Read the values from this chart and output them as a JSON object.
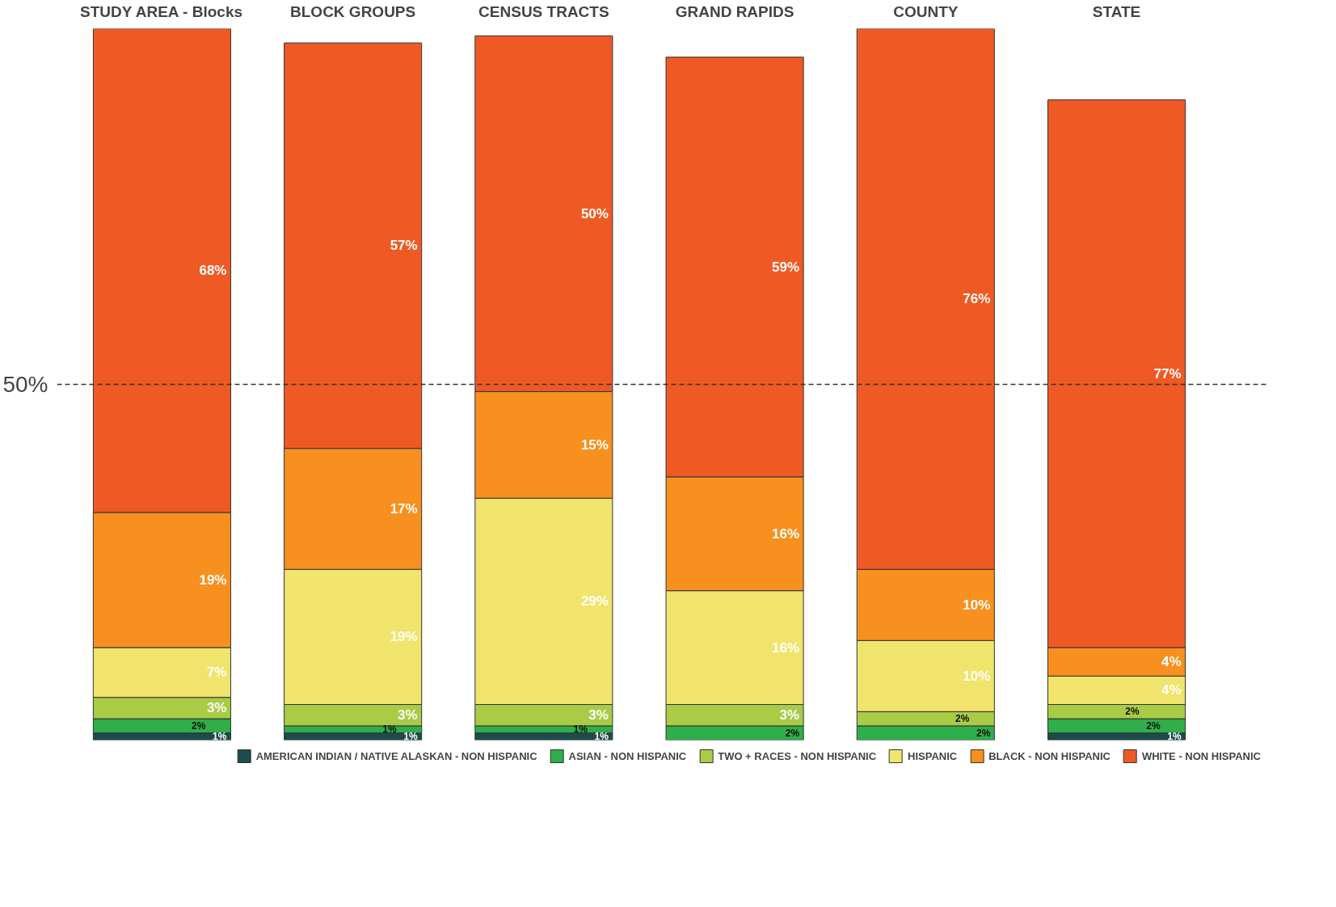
{
  "chart_data": {
    "type": "bar",
    "stacked": true,
    "categories": [
      "STUDY AREA - Blocks",
      "BLOCK GROUPS",
      "CENSUS TRACTS",
      "GRAND RAPIDS",
      "COUNTY",
      "STATE"
    ],
    "series": [
      {
        "name": "AMERICAN INDIAN / NATIVE ALASKAN - NON HISPANIC",
        "color": "#1d4a4a",
        "values": [
          1,
          1,
          1,
          null,
          null,
          1
        ],
        "value_labels": [
          "1%",
          "1%",
          "1%",
          null,
          null,
          "1%"
        ]
      },
      {
        "name": "ASIAN - NON HISPANIC",
        "color": "#2fae4a",
        "values": [
          2,
          1,
          1,
          2,
          2,
          2
        ],
        "value_labels": [
          "2%",
          "1%",
          "1%",
          "2%",
          "2%",
          "2%"
        ]
      },
      {
        "name": "TWO + RACES - NON HISPANIC",
        "color": "#a9cb46",
        "values": [
          3,
          3,
          3,
          3,
          2,
          2
        ],
        "value_labels": [
          "3%",
          "3%",
          "3%",
          "3%",
          "2%",
          "2%"
        ]
      },
      {
        "name": "HISPANIC",
        "color": "#f0e46c",
        "values": [
          7,
          19,
          29,
          16,
          10,
          4
        ],
        "value_labels": [
          "7%",
          "19%",
          "29%",
          "16%",
          "10%",
          "4%"
        ]
      },
      {
        "name": "BLACK - NON HISPANIC",
        "color": "#f7901e",
        "values": [
          19,
          17,
          15,
          16,
          10,
          4
        ],
        "value_labels": [
          "19%",
          "17%",
          "15%",
          "16%",
          "10%",
          "4%"
        ]
      },
      {
        "name": "WHITE - NON HISPANIC",
        "color": "#ef5a24",
        "values": [
          68,
          57,
          50,
          59,
          76,
          77
        ],
        "value_labels": [
          "68%",
          "57%",
          "50%",
          "59%",
          "76%",
          "77%"
        ]
      }
    ],
    "ylim": [
      0,
      100
    ],
    "yticks": [
      {
        "value": 50,
        "label": "50%"
      }
    ],
    "ref_lines": [
      {
        "axis": "y",
        "value": 50,
        "label": null,
        "line_style": "dashed",
        "color": "#333333"
      }
    ],
    "legend": "bottom",
    "grid": false
  }
}
